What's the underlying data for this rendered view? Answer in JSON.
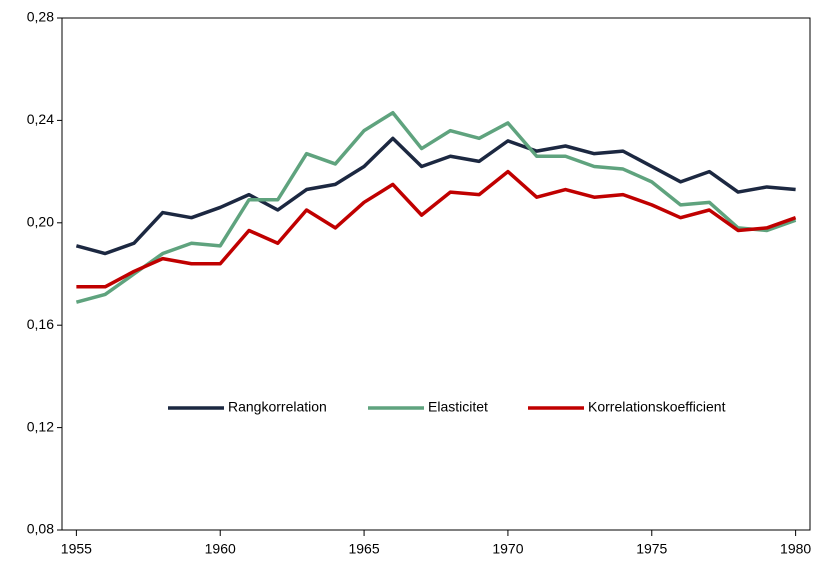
{
  "chart_data": {
    "type": "line",
    "x": [
      1955,
      1956,
      1957,
      1958,
      1959,
      1960,
      1961,
      1962,
      1963,
      1964,
      1965,
      1966,
      1967,
      1968,
      1969,
      1970,
      1971,
      1972,
      1973,
      1974,
      1975,
      1976,
      1977,
      1978,
      1979,
      1980
    ],
    "series": [
      {
        "name": "Rangkorrelation",
        "color": "#1c2841",
        "values": [
          0.191,
          0.188,
          0.192,
          0.204,
          0.202,
          0.206,
          0.211,
          0.205,
          0.213,
          0.215,
          0.222,
          0.233,
          0.222,
          0.226,
          0.224,
          0.232,
          0.228,
          0.23,
          0.227,
          0.228,
          0.222,
          0.216,
          0.22,
          0.212,
          0.214,
          0.213
        ]
      },
      {
        "name": "Elasticitet",
        "color": "#5fa37e",
        "values": [
          0.169,
          0.172,
          0.18,
          0.188,
          0.192,
          0.191,
          0.209,
          0.209,
          0.227,
          0.223,
          0.236,
          0.243,
          0.229,
          0.236,
          0.233,
          0.239,
          0.226,
          0.226,
          0.222,
          0.221,
          0.216,
          0.207,
          0.208,
          0.198,
          0.197,
          0.201
        ]
      },
      {
        "name": "Korrelationskoefficient",
        "color": "#c00000",
        "values": [
          0.175,
          0.175,
          0.181,
          0.186,
          0.184,
          0.184,
          0.197,
          0.192,
          0.205,
          0.198,
          0.208,
          0.215,
          0.203,
          0.212,
          0.211,
          0.22,
          0.21,
          0.213,
          0.21,
          0.211,
          0.207,
          0.202,
          0.205,
          0.197,
          0.198,
          0.202
        ]
      }
    ],
    "xlim": [
      1954.5,
      1980.5
    ],
    "xticks": [
      1955,
      1960,
      1965,
      1970,
      1975,
      1980
    ],
    "ylim": [
      0.08,
      0.28
    ],
    "yticks": [
      {
        "value": 0.08,
        "label": "0,08"
      },
      {
        "value": 0.12,
        "label": "0,12"
      },
      {
        "value": 0.16,
        "label": "0,16"
      },
      {
        "value": 0.2,
        "label": "0,20"
      },
      {
        "value": 0.24,
        "label": "0,24"
      },
      {
        "value": 0.28,
        "label": "0,28"
      }
    ],
    "grid": false,
    "legend": "center"
  }
}
